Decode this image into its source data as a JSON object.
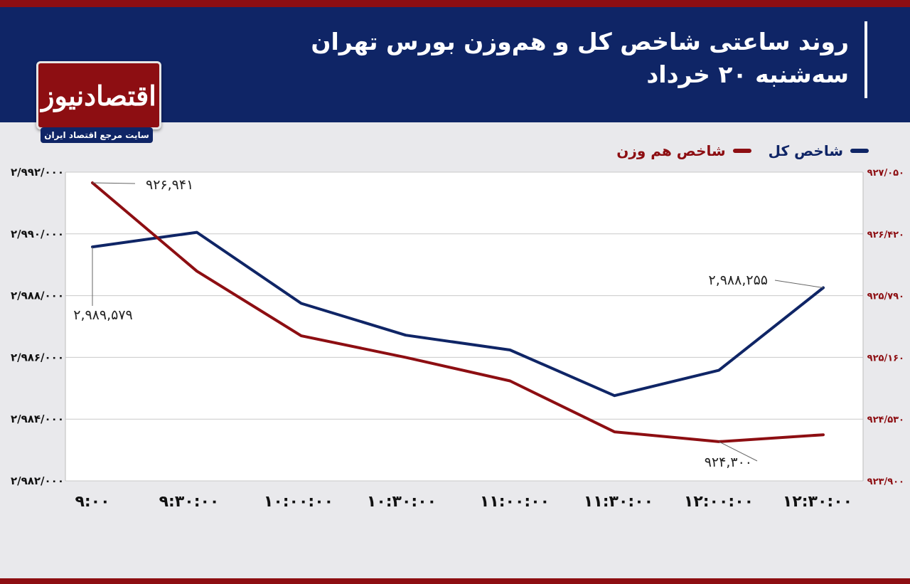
{
  "header": {
    "title": "روند ساعتی شاخص کل و هم‌وزن بورس تهران",
    "subtitle": "سه‌شنبه ۲۰ خرداد"
  },
  "logo": {
    "name": "اقتصادنیوز",
    "tagline": "سایت مرجع اقتصاد ایران"
  },
  "colors": {
    "header_bg": "#0f2566",
    "accent": "#8d0e12"
  },
  "chart_data": {
    "type": "line",
    "x": [
      "۹:۰۰",
      "۹:۳۰:۰۰",
      "۱۰:۰۰:۰۰",
      "۱۰:۳۰:۰۰",
      "۱۱:۰۰:۰۰",
      "۱۱:۳۰:۰۰",
      "۱۲:۰۰:۰۰",
      "۱۲:۳۰:۰۰"
    ],
    "legend_position": "top-right",
    "grid": true,
    "y_left": {
      "range": [
        2982000,
        2992000
      ],
      "ticks": [
        2982000,
        2984000,
        2986000,
        2988000,
        2990000,
        2992000
      ],
      "tick_labels": [
        "۲/۹۸۲/۰۰۰",
        "۲/۹۸۴/۰۰۰",
        "۲/۹۸۶/۰۰۰",
        "۲/۹۸۸/۰۰۰",
        "۲/۹۹۰/۰۰۰",
        "۲/۹۹۲/۰۰۰"
      ]
    },
    "y_right": {
      "range": [
        923900,
        927050
      ],
      "ticks": [
        923900,
        924530,
        925160,
        925790,
        926420,
        927050
      ],
      "tick_labels": [
        "۹۲۳/۹۰۰",
        "۹۲۴/۵۳۰",
        "۹۲۵/۱۶۰",
        "۹۲۵/۷۹۰",
        "۹۲۶/۴۲۰",
        "۹۲۷/۰۵۰"
      ]
    },
    "series": [
      {
        "name": "شاخص کل",
        "axis": "left",
        "color": "#0f2566",
        "values": [
          2989579,
          2990050,
          2987750,
          2986720,
          2986240,
          2984760,
          2985580,
          2988255
        ]
      },
      {
        "name": "شاخص هم وزن",
        "axis": "right",
        "color": "#8d0e12",
        "values": [
          926941,
          926040,
          925380,
          925160,
          924920,
          924400,
          924300,
          924370
        ]
      }
    ],
    "annotations": [
      {
        "series": 1,
        "index": 0,
        "text": "۹۲۶,۹۴۱"
      },
      {
        "series": 0,
        "index": 0,
        "text": "۲,۹۸۹,۵۷۹"
      },
      {
        "series": 0,
        "index": 7,
        "text": "۲,۹۸۸,۲۵۵"
      },
      {
        "series": 1,
        "index": 6,
        "text": "۹۲۴,۳۰۰"
      }
    ]
  }
}
